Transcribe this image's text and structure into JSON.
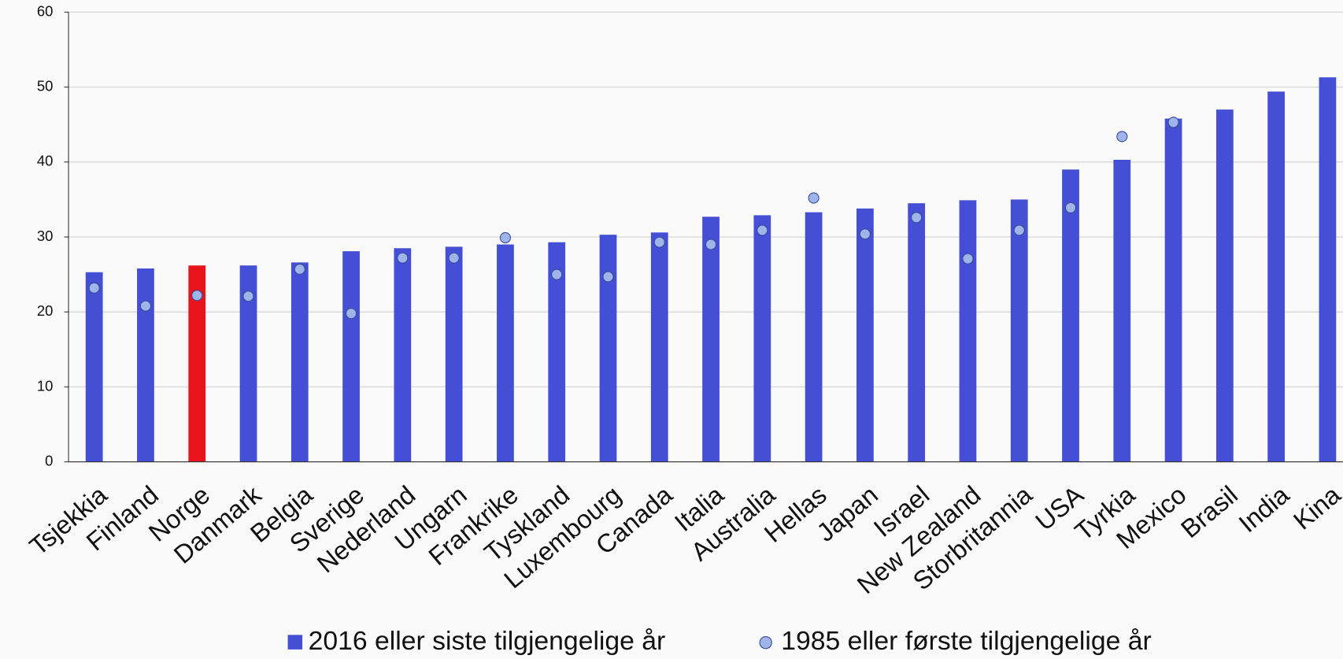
{
  "chart_data": {
    "type": "bar",
    "categories": [
      "Tsjekkia",
      "Finland",
      "Norge",
      "Danmark",
      "Belgia",
      "Sverige",
      "Nederland",
      "Ungarn",
      "Frankrike",
      "Tyskland",
      "Luxembourg",
      "Canada",
      "Italia",
      "Australia",
      "Hellas",
      "Japan",
      "Israel",
      "New Zealand",
      "Storbritannia",
      "USA",
      "Tyrkia",
      "Mexico",
      "Brasil",
      "India",
      "Kina"
    ],
    "series": [
      {
        "name": "2016 eller siste tilgjengelige år",
        "type": "bar",
        "color": "#454fd6",
        "colors": [
          "#454fd6",
          "#454fd6",
          "#e8141c",
          "#454fd6",
          "#454fd6",
          "#454fd6",
          "#454fd6",
          "#454fd6",
          "#454fd6",
          "#454fd6",
          "#454fd6",
          "#454fd6",
          "#454fd6",
          "#454fd6",
          "#454fd6",
          "#454fd6",
          "#454fd6",
          "#454fd6",
          "#454fd6",
          "#454fd6",
          "#454fd6",
          "#454fd6",
          "#454fd6",
          "#454fd6",
          "#454fd6"
        ],
        "values": [
          25.3,
          25.8,
          26.2,
          26.2,
          26.6,
          28.1,
          28.5,
          28.7,
          29.0,
          29.3,
          30.3,
          30.6,
          32.7,
          32.9,
          33.3,
          33.8,
          34.5,
          34.9,
          35.0,
          39.0,
          40.3,
          45.8,
          47.0,
          49.4,
          51.3
        ]
      },
      {
        "name": "1985 eller første tilgjengelige år",
        "type": "scatter",
        "color": "#9fb4e8",
        "values": [
          23.2,
          20.8,
          22.2,
          22.1,
          25.7,
          19.8,
          27.2,
          27.2,
          29.9,
          25.0,
          24.7,
          29.3,
          29.0,
          30.9,
          35.2,
          30.4,
          32.6,
          27.1,
          30.9,
          33.9,
          43.4,
          45.3,
          null,
          null,
          null
        ]
      }
    ],
    "ylim": [
      0,
      60
    ],
    "yticks": [
      0,
      10,
      20,
      30,
      40,
      50,
      60
    ],
    "grid": true,
    "legend": "bottom"
  }
}
